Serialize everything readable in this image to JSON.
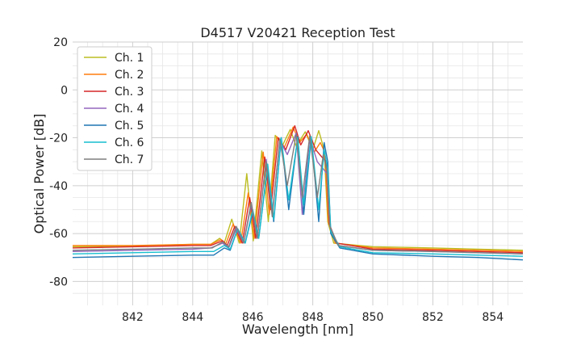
{
  "chart_data": {
    "type": "line",
    "title": "D4517 V20421 Reception Test",
    "xlabel": "Wavelength [nm]",
    "ylabel": "Optical Power [dB]",
    "xlim": [
      840.0,
      855.0
    ],
    "ylim": [
      -90,
      20
    ],
    "xticks": [
      842,
      844,
      846,
      848,
      850,
      852,
      854
    ],
    "yticks": [
      20,
      0,
      -20,
      -40,
      -60,
      -80
    ],
    "grid": true,
    "legend_position": "top-left",
    "series": [
      {
        "name": "Ch. 1",
        "color": "#bcbd22",
        "x": [
          840.0,
          842.0,
          844.0,
          844.6,
          844.9,
          845.05,
          845.3,
          845.55,
          845.8,
          846.02,
          846.3,
          846.52,
          846.75,
          847.0,
          847.25,
          847.45,
          847.75,
          848.0,
          848.2,
          848.38,
          848.5,
          848.7,
          850.0,
          852.0,
          853.5,
          855.0
        ],
        "y": [
          -65.5,
          -65.2,
          -64.5,
          -64.5,
          -62.0,
          -64.0,
          -54.0,
          -64.0,
          -35.0,
          -63.0,
          -25.5,
          -55.0,
          -19.0,
          -23.0,
          -16.5,
          -23.5,
          -17.5,
          -25.0,
          -17.0,
          -25.0,
          -55.0,
          -64.0,
          -65.5,
          -66.0,
          -66.5,
          -67.0
        ]
      },
      {
        "name": "Ch. 2",
        "color": "#ff7f0e",
        "x": [
          840.0,
          842.0,
          844.0,
          844.6,
          844.95,
          845.1,
          845.35,
          845.6,
          845.85,
          846.05,
          846.35,
          846.55,
          846.8,
          847.05,
          847.35,
          847.55,
          847.8,
          848.05,
          848.25,
          848.4,
          848.52,
          848.75,
          850.0,
          852.0,
          853.5,
          855.0
        ],
        "y": [
          -65.0,
          -65.0,
          -64.5,
          -64.5,
          -62.5,
          -64.5,
          -56.0,
          -64.0,
          -43.0,
          -62.0,
          -26.0,
          -52.0,
          -19.5,
          -24.0,
          -15.5,
          -22.0,
          -18.5,
          -26.0,
          -22.0,
          -26.0,
          -55.0,
          -64.0,
          -66.0,
          -66.5,
          -67.0,
          -67.5
        ]
      },
      {
        "name": "Ch. 3",
        "color": "#d62728",
        "x": [
          840.0,
          842.0,
          844.0,
          844.6,
          845.0,
          845.15,
          845.4,
          845.65,
          845.9,
          846.1,
          846.4,
          846.6,
          846.85,
          847.1,
          847.4,
          847.6,
          847.85,
          848.1,
          848.3,
          848.45,
          848.55,
          848.8,
          850.0,
          852.0,
          853.5,
          855.0
        ],
        "y": [
          -66.0,
          -65.5,
          -65.0,
          -65.0,
          -63.0,
          -65.0,
          -57.0,
          -64.0,
          -45.0,
          -62.0,
          -28.0,
          -50.0,
          -20.0,
          -25.0,
          -15.0,
          -23.0,
          -17.0,
          -25.0,
          -28.0,
          -30.0,
          -56.0,
          -64.0,
          -66.5,
          -67.0,
          -67.5,
          -68.0
        ]
      },
      {
        "name": "Ch. 4",
        "color": "#9467bd",
        "x": [
          840.0,
          842.0,
          844.0,
          844.6,
          845.0,
          845.2,
          845.45,
          845.7,
          845.95,
          846.15,
          846.45,
          846.65,
          846.9,
          847.15,
          847.45,
          847.65,
          847.9,
          848.15,
          848.35,
          848.47,
          848.57,
          848.85,
          850.0,
          852.0,
          853.5,
          855.0
        ],
        "y": [
          -67.5,
          -67.0,
          -66.5,
          -66.0,
          -64.0,
          -66.0,
          -58.0,
          -64.0,
          -48.0,
          -62.0,
          -29.0,
          -52.0,
          -21.0,
          -27.0,
          -18.0,
          -52.0,
          -20.0,
          -30.0,
          -33.0,
          -35.0,
          -57.0,
          -65.0,
          -67.0,
          -67.5,
          -68.0,
          -68.5
        ]
      },
      {
        "name": "Ch. 5",
        "color": "#1f77b4",
        "x": [
          840.0,
          842.0,
          844.0,
          844.7,
          845.05,
          845.25,
          845.5,
          845.75,
          846.0,
          846.2,
          846.5,
          846.7,
          846.95,
          847.2,
          847.5,
          847.7,
          847.95,
          848.2,
          848.38,
          848.5,
          848.6,
          848.9,
          850.0,
          852.0,
          853.5,
          855.0
        ],
        "y": [
          -70.0,
          -69.5,
          -69.0,
          -69.0,
          -66.0,
          -67.0,
          -58.0,
          -64.0,
          -51.0,
          -62.0,
          -32.0,
          -55.0,
          -20.0,
          -50.0,
          -19.5,
          -52.0,
          -20.0,
          -55.0,
          -22.0,
          -30.0,
          -60.0,
          -66.0,
          -68.5,
          -69.5,
          -70.0,
          -71.0
        ]
      },
      {
        "name": "Ch. 6",
        "color": "#17becf",
        "x": [
          840.0,
          842.0,
          844.0,
          844.7,
          845.05,
          845.25,
          845.5,
          845.75,
          846.0,
          846.2,
          846.5,
          846.7,
          846.95,
          847.2,
          847.5,
          847.7,
          847.95,
          848.2,
          848.38,
          848.5,
          848.6,
          848.9,
          850.0,
          852.0,
          853.5,
          855.0
        ],
        "y": [
          -68.5,
          -68.0,
          -67.5,
          -67.5,
          -65.0,
          -66.5,
          -58.0,
          -64.0,
          -50.0,
          -62.0,
          -31.0,
          -54.0,
          -20.0,
          -46.0,
          -20.0,
          -48.0,
          -19.5,
          -50.0,
          -25.0,
          -33.0,
          -59.0,
          -65.5,
          -68.0,
          -68.5,
          -69.0,
          -69.5
        ]
      },
      {
        "name": "Ch. 7",
        "color": "#7f7f7f",
        "x": [
          840.0,
          842.0,
          844.0,
          844.65,
          845.0,
          845.2,
          845.45,
          845.7,
          845.95,
          846.15,
          846.45,
          846.65,
          846.9,
          847.15,
          847.45,
          847.65,
          847.9,
          848.15,
          848.35,
          848.47,
          848.57,
          848.85,
          850.0,
          852.0,
          853.5,
          855.0
        ],
        "y": [
          -67.0,
          -66.5,
          -66.0,
          -66.0,
          -63.5,
          -65.5,
          -57.0,
          -64.0,
          -47.0,
          -62.0,
          -30.0,
          -53.0,
          -20.5,
          -40.0,
          -18.5,
          -45.0,
          -19.0,
          -45.0,
          -27.0,
          -34.0,
          -57.0,
          -65.0,
          -67.0,
          -67.5,
          -68.0,
          -68.5
        ]
      }
    ]
  }
}
